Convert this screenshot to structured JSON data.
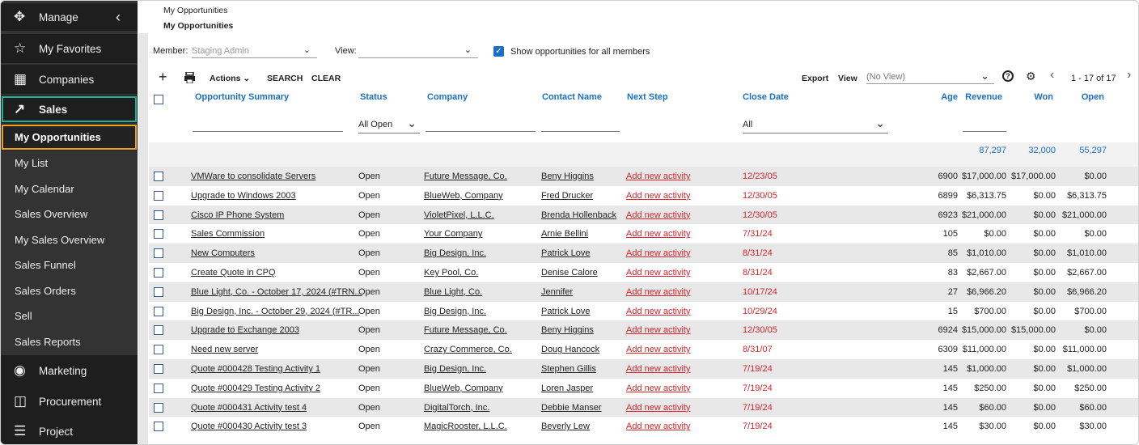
{
  "sidebar": {
    "items": [
      "Manage",
      "My Favorites",
      "Companies",
      "Sales",
      "My Opportunities",
      "My List",
      "My Calendar",
      "Sales Overview",
      "My Sales Overview",
      "Sales Funnel",
      "Sales Orders",
      "Sell",
      "Sales Reports",
      "Marketing",
      "Procurement",
      "Project"
    ]
  },
  "header": {
    "breadcrumb": "My Opportunities",
    "title": "My Opportunities"
  },
  "filters": {
    "member_label": "Member:",
    "member_value": "Staging Admin",
    "view_label": "View:",
    "show_all_label": "Show opportunities for all members"
  },
  "toolbar": {
    "actions": "Actions",
    "search": "SEARCH",
    "clear": "CLEAR",
    "export": "Export",
    "view_label": "View",
    "view_value": "(No View)",
    "pagination": "1 - 17 of 17"
  },
  "table": {
    "columns": [
      "Opportunity Summary",
      "Status",
      "Company",
      "Contact Name",
      "Next Step",
      "Close Date",
      "Age",
      "Revenue",
      "Won",
      "Open"
    ],
    "status_filter": "All Open",
    "close_date_filter": "All",
    "totals": {
      "revenue": "87,297",
      "won": "32,000",
      "open": "55,297"
    },
    "rows": [
      [
        "VMWare to consolidate Servers",
        "Open",
        "Future Message, Co.",
        "Beny Higgins",
        "Add new activity",
        "12/23/05",
        6900,
        "$17,000.00",
        "$17,000.00",
        "$0.00"
      ],
      [
        "Upgrade to Windows 2003",
        "Open",
        "BlueWeb, Company",
        "Fred Drucker",
        "Add new activity",
        "12/30/05",
        6899,
        "$6,313.75",
        "$0.00",
        "$6,313.75"
      ],
      [
        "Cisco IP Phone System",
        "Open",
        "VioletPixel, L.L.C.",
        "Brenda Hollenback",
        "Add new activity",
        "12/30/05",
        6923,
        "$21,000.00",
        "$0.00",
        "$21,000.00"
      ],
      [
        "Sales Commission",
        "Open",
        "Your Company",
        "Arnie Bellini",
        "Add new activity",
        "7/31/24",
        105,
        "$0.00",
        "$0.00",
        "$0.00"
      ],
      [
        "New Computers",
        "Open",
        "Big Design, Inc.",
        "Patrick Love",
        "Add new activity",
        "8/31/24",
        85,
        "$1,010.00",
        "$0.00",
        "$1,010.00"
      ],
      [
        "Create Quote in CPQ",
        "Open",
        "Key Pool, Co.",
        "Denise Calore",
        "Add new activity",
        "8/31/24",
        83,
        "$2,667.00",
        "$0.00",
        "$2,667.00"
      ],
      [
        "Blue Light, Co. - October 17, 2024  (#TRN...",
        "Open",
        "Blue Light, Co.",
        "Jennifer",
        "Add new activity",
        "10/17/24",
        27,
        "$6,966.20",
        "$0.00",
        "$6,966.20"
      ],
      [
        "Big Design, Inc. - October 29, 2024  (#TR...",
        "Open",
        "Big Design, Inc.",
        "Patrick Love",
        "Add new activity",
        "10/29/24",
        15,
        "$700.00",
        "$0.00",
        "$700.00"
      ],
      [
        "Upgrade to Exchange 2003",
        "Open",
        "Future Message, Co.",
        "Beny Higgins",
        "Add new activity",
        "12/30/05",
        6924,
        "$15,000.00",
        "$15,000.00",
        "$0.00"
      ],
      [
        "Need new server",
        "Open",
        "Crazy Commerce, Co.",
        "Doug Hancock",
        "Add new activity",
        "8/31/07",
        6309,
        "$11,000.00",
        "$0.00",
        "$11,000.00"
      ],
      [
        "Quote #000428 Testing Activity 1",
        "Open",
        "Big Design, Inc.",
        "Stephen Gillis",
        "Add new activity",
        "7/19/24",
        145,
        "$1,000.00",
        "$0.00",
        "$1,000.00"
      ],
      [
        "Quote #000429 Testing Activity 2",
        "Open",
        "BlueWeb, Company",
        "Loren Jasper",
        "Add new activity",
        "7/19/24",
        145,
        "$250.00",
        "$0.00",
        "$250.00"
      ],
      [
        "Quote #000431 Activity test 4",
        "Open",
        "DigitalTorch, Inc.",
        "Debbie Manser",
        "Add new activity",
        "7/19/24",
        145,
        "$60.00",
        "$0.00",
        "$60.00"
      ],
      [
        "Quote #000430 Activity test 3",
        "Open",
        "MagicRooster, L.L.C.",
        "Beverly Lew",
        "Add new activity",
        "7/19/24",
        145,
        "$30.00",
        "$0.00",
        "$30.00"
      ]
    ]
  }
}
